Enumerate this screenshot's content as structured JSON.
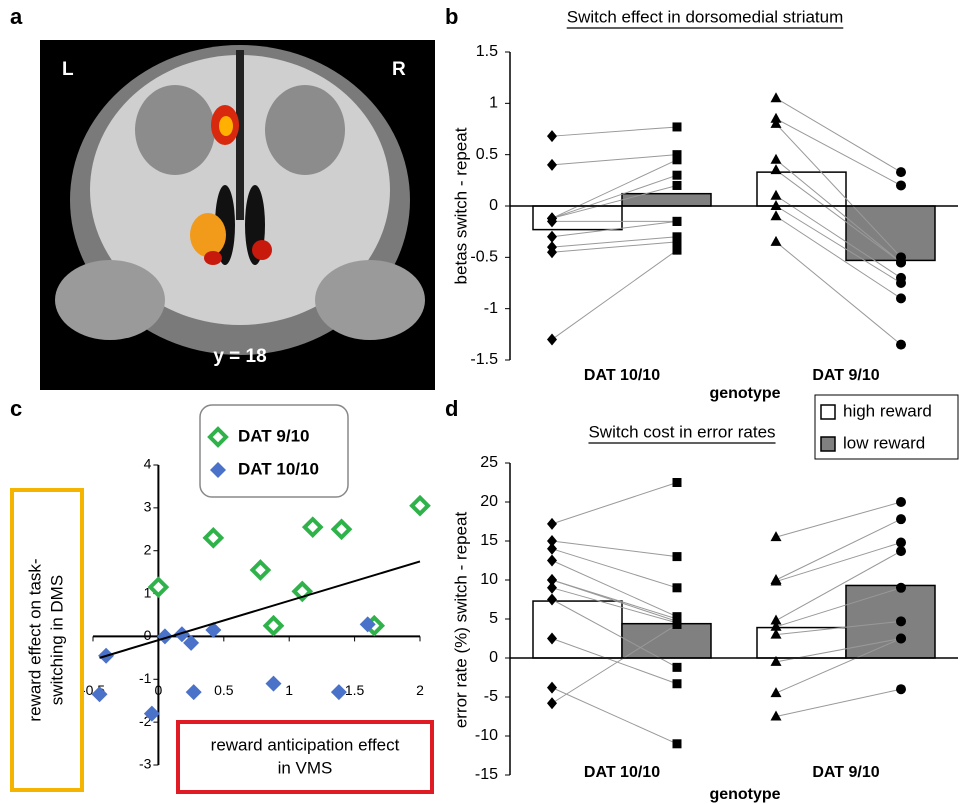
{
  "image_panel": {
    "panel_label": "a",
    "left_label": "L",
    "right_label": "R",
    "caption": "y = 18"
  },
  "chart_data": [
    {
      "type": "bar",
      "panel_label": "b",
      "title": "Switch effect in dorsomedial striatum",
      "ylabel": "betas switch - repeat",
      "xlabel": "genotype",
      "categories": [
        "DAT 10/10",
        "DAT 9/10"
      ],
      "series": [
        {
          "name": "high reward",
          "color": "#ffffff",
          "values": [
            -0.23,
            0.33
          ],
          "points": [
            [
              0.68,
              0.4,
              -0.12,
              -0.12,
              -0.12,
              -0.15,
              -0.3,
              -0.4,
              -0.45,
              -1.3
            ],
            [
              1.05,
              0.85,
              0.8,
              0.45,
              0.35,
              0.1,
              0,
              -0.1,
              -0.35
            ]
          ]
        },
        {
          "name": "low reward",
          "color": "#808080",
          "values": [
            0.12,
            -0.53
          ],
          "points": [
            [
              0.77,
              0.5,
              0.45,
              0.3,
              0.2,
              -0.15,
              -0.15,
              -0.3,
              -0.35,
              -0.43
            ],
            [
              0.33,
              0.2,
              -0.5,
              -0.55,
              -0.55,
              -0.7,
              -0.75,
              -0.9,
              -1.35
            ]
          ]
        }
      ],
      "ylim": [
        -1.5,
        1.5
      ],
      "yticks": [
        -1.5,
        -1,
        -0.5,
        0,
        0.5,
        1,
        1.5
      ]
    },
    {
      "type": "scatter",
      "panel_label": "c",
      "ylabel_lines": [
        "reward effect on task-",
        "switching in DMS"
      ],
      "xlabel_lines": [
        "reward anticipation effect",
        "in VMS"
      ],
      "series": [
        {
          "name": "DAT 9/10",
          "color": "#2fb24a",
          "x": [
            0,
            0.42,
            0.78,
            0.88,
            1.1,
            1.18,
            1.4,
            1.65,
            2
          ],
          "y": [
            1.15,
            2.3,
            1.55,
            0.25,
            1.05,
            2.55,
            2.5,
            0.25,
            3.05
          ]
        },
        {
          "name": "DAT 10/10",
          "color": "#4a72c8",
          "x": [
            -0.4,
            -0.45,
            -0.05,
            0.05,
            0.18,
            0.25,
            0.27,
            0.42,
            0.88,
            1.38,
            1.6
          ],
          "y": [
            -0.45,
            -1.35,
            -1.8,
            0,
            0.05,
            -0.15,
            -1.3,
            0.15,
            -1.1,
            -1.3,
            0.28
          ]
        }
      ],
      "fit": {
        "x": [
          -0.45,
          2
        ],
        "y": [
          -0.5,
          1.75
        ]
      },
      "xlim": [
        -0.5,
        2
      ],
      "xticks": [
        -0.5,
        0,
        0.5,
        1,
        1.5,
        2
      ],
      "ylim": [
        -3,
        4
      ],
      "yticks": [
        -3,
        -2,
        -1,
        0,
        1,
        2,
        3,
        4
      ]
    },
    {
      "type": "bar",
      "panel_label": "d",
      "title": "Switch cost in error rates",
      "ylabel": "error rate (%) switch - repeat",
      "xlabel": "genotype",
      "categories": [
        "DAT 10/10",
        "DAT 9/10"
      ],
      "series": [
        {
          "color": "#ffffff",
          "values": [
            7.3,
            3.9
          ],
          "points": [
            [
              17.2,
              15,
              14,
              12.5,
              10,
              10,
              9,
              7.5,
              2.5,
              -3.8,
              -5.8
            ],
            [
              15.5,
              10,
              9.8,
              4.8,
              4,
              3,
              -0.5,
              -4.5,
              -7.5
            ]
          ]
        },
        {
          "color": "#808080",
          "values": [
            4.4,
            9.3
          ],
          "points": [
            [
              22.5,
              13,
              9,
              5.3,
              5,
              4.7,
              4.5,
              -1.2,
              -3.3,
              -11,
              4.3
            ],
            [
              20,
              17.8,
              14.8,
              13.7,
              9,
              4.7,
              2.5,
              2.5,
              -4
            ]
          ]
        }
      ],
      "ylim": [
        -15,
        25
      ],
      "yticks": [
        -15,
        -10,
        -5,
        0,
        5,
        10,
        15,
        20,
        25
      ]
    }
  ]
}
